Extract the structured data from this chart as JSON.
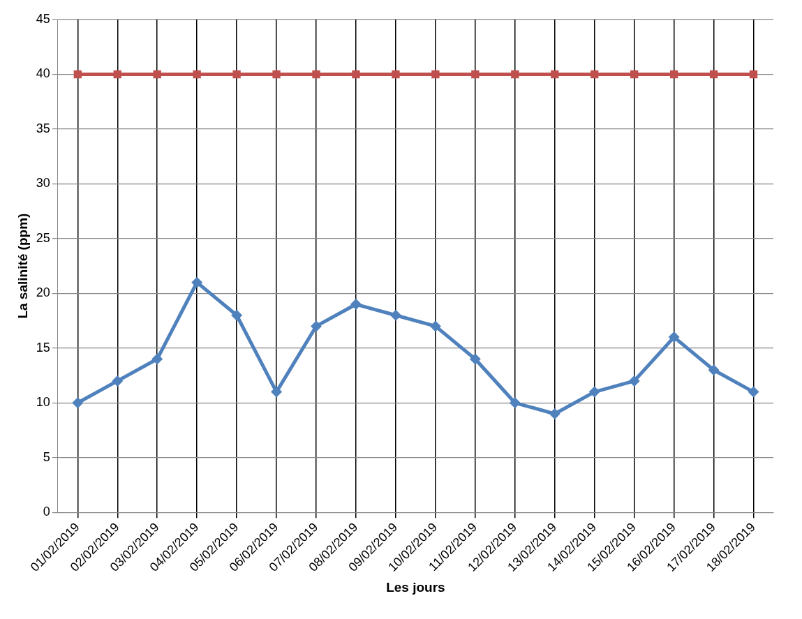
{
  "chart_data": {
    "type": "line",
    "xlabel": "Les jours",
    "ylabel": "La salinité (ppm)",
    "categories": [
      "01/02/2019",
      "02/02/2019",
      "03/02/2019",
      "04/02/2019",
      "05/02/2019",
      "06/02/2019",
      "07/02/2019",
      "08/02/2019",
      "09/02/2019",
      "10/02/2019",
      "11/02/2019",
      "12/02/2019",
      "13/02/2019",
      "14/02/2019",
      "15/02/2019",
      "16/02/2019",
      "17/02/2019",
      "18/02/2019"
    ],
    "series": [
      {
        "color": "#4f81bd",
        "marker": "diamond",
        "values": [
          10,
          12,
          14,
          21,
          18,
          11,
          17,
          19,
          18,
          17,
          14,
          10,
          9,
          11,
          12,
          16,
          13,
          11
        ]
      },
      {
        "color": "#c0504d",
        "marker": "square",
        "values": [
          40,
          40,
          40,
          40,
          40,
          40,
          40,
          40,
          40,
          40,
          40,
          40,
          40,
          40,
          40,
          40,
          40,
          40
        ]
      }
    ],
    "ylim": [
      0,
      45
    ],
    "yticks": [
      0,
      5,
      10,
      15,
      20,
      25,
      30,
      35,
      40,
      45
    ],
    "grid": true,
    "legend": false
  }
}
